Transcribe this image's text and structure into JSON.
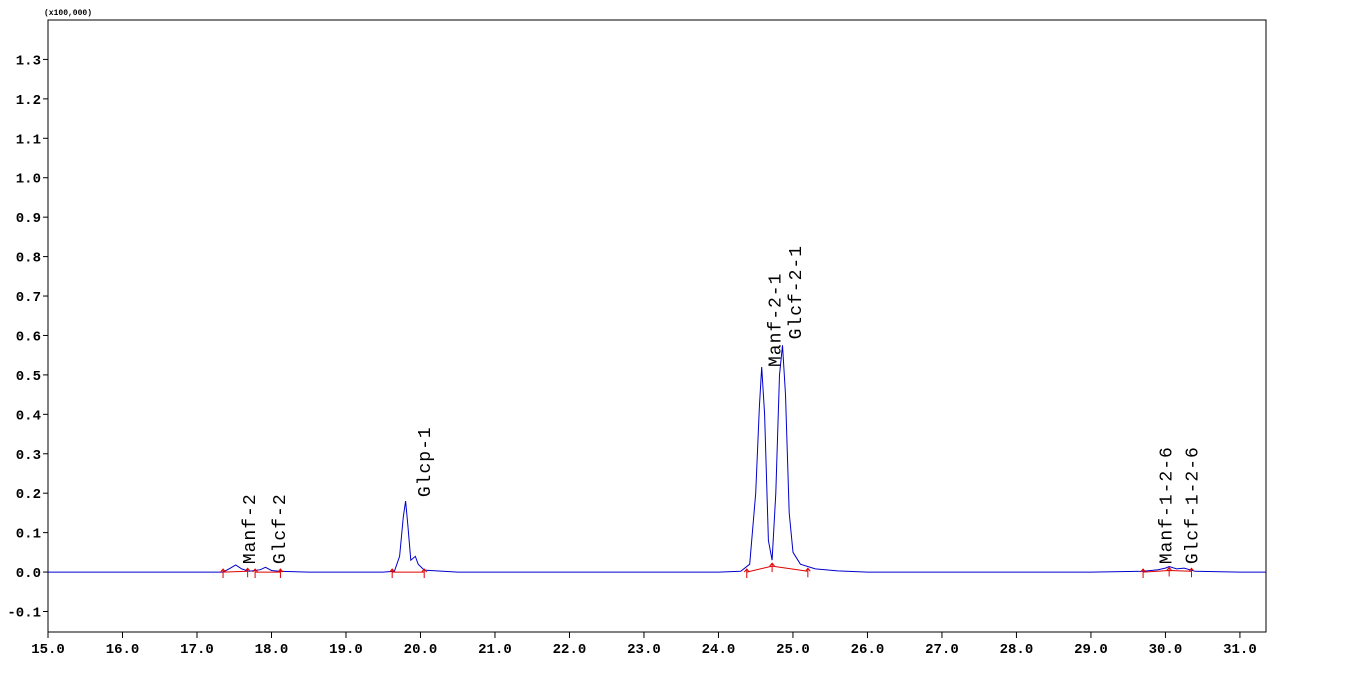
{
  "chart_data": {
    "type": "line",
    "y_unit": "(x100,000)",
    "xlim": [
      15.0,
      31.35
    ],
    "ylim": [
      -0.152,
      1.4
    ],
    "xticks": [
      {
        "value": 15,
        "label": "15.0"
      },
      {
        "value": 16,
        "label": "16.0"
      },
      {
        "value": 17,
        "label": "17.0"
      },
      {
        "value": 18,
        "label": "18.0"
      },
      {
        "value": 19,
        "label": "19.0"
      },
      {
        "value": 20,
        "label": "20.0"
      },
      {
        "value": 21,
        "label": "21.0"
      },
      {
        "value": 22,
        "label": "22.0"
      },
      {
        "value": 23,
        "label": "23.0"
      },
      {
        "value": 24,
        "label": "24.0"
      },
      {
        "value": 25,
        "label": "25.0"
      },
      {
        "value": 26,
        "label": "26.0"
      },
      {
        "value": 27,
        "label": "27.0"
      },
      {
        "value": 28,
        "label": "28.0"
      },
      {
        "value": 29,
        "label": "29.0"
      },
      {
        "value": 30,
        "label": "30.0"
      },
      {
        "value": 31,
        "label": "31.0"
      }
    ],
    "yticks": [
      -0.1,
      {
        "value": 0,
        "label": "0.0"
      },
      0.1,
      0.2,
      0.3,
      0.4,
      0.5,
      0.6,
      0.7,
      0.8,
      0.9,
      {
        "value": 1,
        "label": "1.0"
      },
      1.1,
      1.2,
      1.3
    ],
    "trace": {
      "color": "#0000cc",
      "x": [
        15.0,
        16.0,
        17.0,
        17.35,
        17.45,
        17.52,
        17.6,
        17.7,
        17.85,
        17.92,
        18.0,
        18.1,
        18.5,
        19.0,
        19.5,
        19.65,
        19.72,
        19.77,
        19.8,
        19.83,
        19.87,
        19.93,
        19.97,
        20.05,
        20.5,
        21.0,
        22.0,
        23.0,
        24.0,
        24.3,
        24.42,
        24.5,
        24.55,
        24.58,
        24.62,
        24.67,
        24.72,
        24.77,
        24.82,
        24.86,
        24.9,
        24.95,
        25.0,
        25.1,
        25.3,
        25.6,
        26.0,
        27.0,
        28.0,
        29.0,
        29.7,
        29.9,
        30.0,
        30.05,
        30.15,
        30.25,
        30.4,
        31.0,
        31.35
      ],
      "values": [
        0,
        0,
        0,
        0,
        0.01,
        0.018,
        0.008,
        0.002,
        0.006,
        0.012,
        0.004,
        0.002,
        0,
        0,
        0,
        0.002,
        0.04,
        0.14,
        0.18,
        0.12,
        0.03,
        0.04,
        0.02,
        0.005,
        0,
        0,
        0,
        0,
        0,
        0.002,
        0.02,
        0.2,
        0.42,
        0.52,
        0.4,
        0.08,
        0.03,
        0.2,
        0.5,
        0.575,
        0.45,
        0.15,
        0.05,
        0.02,
        0.008,
        0.003,
        0,
        0,
        0,
        0,
        0.002,
        0.006,
        0.01,
        0.014,
        0.008,
        0.01,
        0.002,
        0,
        0
      ]
    },
    "baseline_color": "#e00000",
    "baselines": [
      {
        "x": [
          17.35,
          17.68
        ],
        "values": [
          0,
          0.002
        ]
      },
      {
        "x": [
          17.78,
          18.12
        ],
        "values": [
          0,
          0
        ]
      },
      {
        "x": [
          19.62,
          20.05
        ],
        "values": [
          0,
          0
        ]
      },
      {
        "x": [
          24.38,
          24.72,
          25.2
        ],
        "values": [
          0,
          0.015,
          0.002
        ]
      },
      {
        "x": [
          29.7,
          30.05,
          30.35
        ],
        "values": [
          0,
          0.004,
          0.002
        ]
      }
    ],
    "peaks": [
      {
        "label": "Manf-2",
        "x": 17.7,
        "y": 0.02
      },
      {
        "label": "Glcf-2",
        "x": 18.1,
        "y": 0.02
      },
      {
        "label": "Glcp-1",
        "x": 20.05,
        "y": 0.19
      },
      {
        "label": "Manf-2-1",
        "x": 24.75,
        "y": 0.52
      },
      {
        "label": "Glcf-2-1",
        "x": 25.03,
        "y": 0.59
      },
      {
        "label": "Manf-1-2-6",
        "x": 30.0,
        "y": 0.02
      },
      {
        "label": "Glcf-1-2-6",
        "x": 30.35,
        "y": 0.02
      }
    ]
  }
}
